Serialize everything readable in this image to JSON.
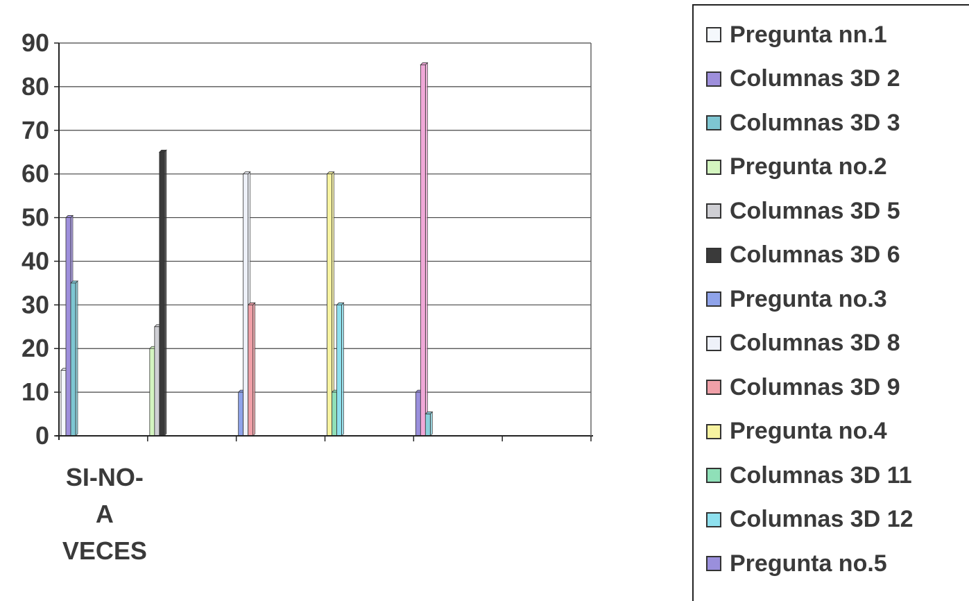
{
  "chart_data": {
    "type": "bar",
    "categories": [
      "SI-NO-\nA\nVECES",
      "",
      "",
      "",
      "",
      ""
    ],
    "category_lines": [
      [
        "SI-NO-",
        "A",
        "VECES"
      ],
      [],
      [],
      [],
      [],
      []
    ],
    "ylim": [
      0,
      90
    ],
    "yticks": [
      0,
      10,
      20,
      30,
      40,
      50,
      60,
      70,
      80,
      90
    ],
    "grid": true,
    "legend_position": "right",
    "series": [
      {
        "name": "Pregunta nn.1",
        "color": "#f4f8fc",
        "values": [
          15,
          0,
          0,
          0,
          0,
          0
        ]
      },
      {
        "name": "Columnas 3D 2",
        "color": "#9e8fdc",
        "values": [
          50,
          0,
          0,
          0,
          0,
          0
        ]
      },
      {
        "name": "Columnas 3D 3",
        "color": "#7ec6d2",
        "values": [
          35,
          0,
          0,
          0,
          0,
          0
        ]
      },
      {
        "name": "Pregunta no.2",
        "color": "#d4f5c0",
        "values": [
          0,
          20,
          0,
          0,
          0,
          0
        ]
      },
      {
        "name": "Columnas 3D 5",
        "color": "#cfcfd4",
        "values": [
          0,
          25,
          0,
          0,
          0,
          0
        ]
      },
      {
        "name": "Columnas 3D 6",
        "color": "#3a3a3a",
        "values": [
          0,
          65,
          0,
          0,
          0,
          0
        ]
      },
      {
        "name": "Pregunta no.3",
        "color": "#8fa3ea",
        "values": [
          0,
          0,
          10,
          0,
          0,
          0
        ]
      },
      {
        "name": "Columnas 3D 8",
        "color": "#eef1f9",
        "values": [
          0,
          0,
          60,
          0,
          0,
          0
        ]
      },
      {
        "name": "Columnas 3D 9",
        "color": "#f0a0a8",
        "values": [
          0,
          0,
          30,
          0,
          0,
          0
        ]
      },
      {
        "name": "Pregunta no.4",
        "color": "#f7f3a0",
        "values": [
          0,
          0,
          0,
          60,
          0,
          0
        ]
      },
      {
        "name": "Columnas 3D 11",
        "color": "#8fe0b8",
        "values": [
          0,
          0,
          0,
          10,
          0,
          0
        ]
      },
      {
        "name": "Columnas 3D 12",
        "color": "#8ee0ee",
        "values": [
          0,
          0,
          0,
          30,
          0,
          0
        ]
      },
      {
        "name": "Pregunta no.5",
        "color": "#9a8fdc",
        "values": [
          0,
          0,
          0,
          0,
          10,
          0
        ]
      },
      {
        "name": "",
        "color": "#f0a8d8",
        "values": [
          0,
          0,
          0,
          0,
          85,
          0
        ]
      },
      {
        "name": "",
        "color": "#8ad0dc",
        "values": [
          0,
          0,
          0,
          0,
          5,
          0
        ]
      }
    ]
  }
}
